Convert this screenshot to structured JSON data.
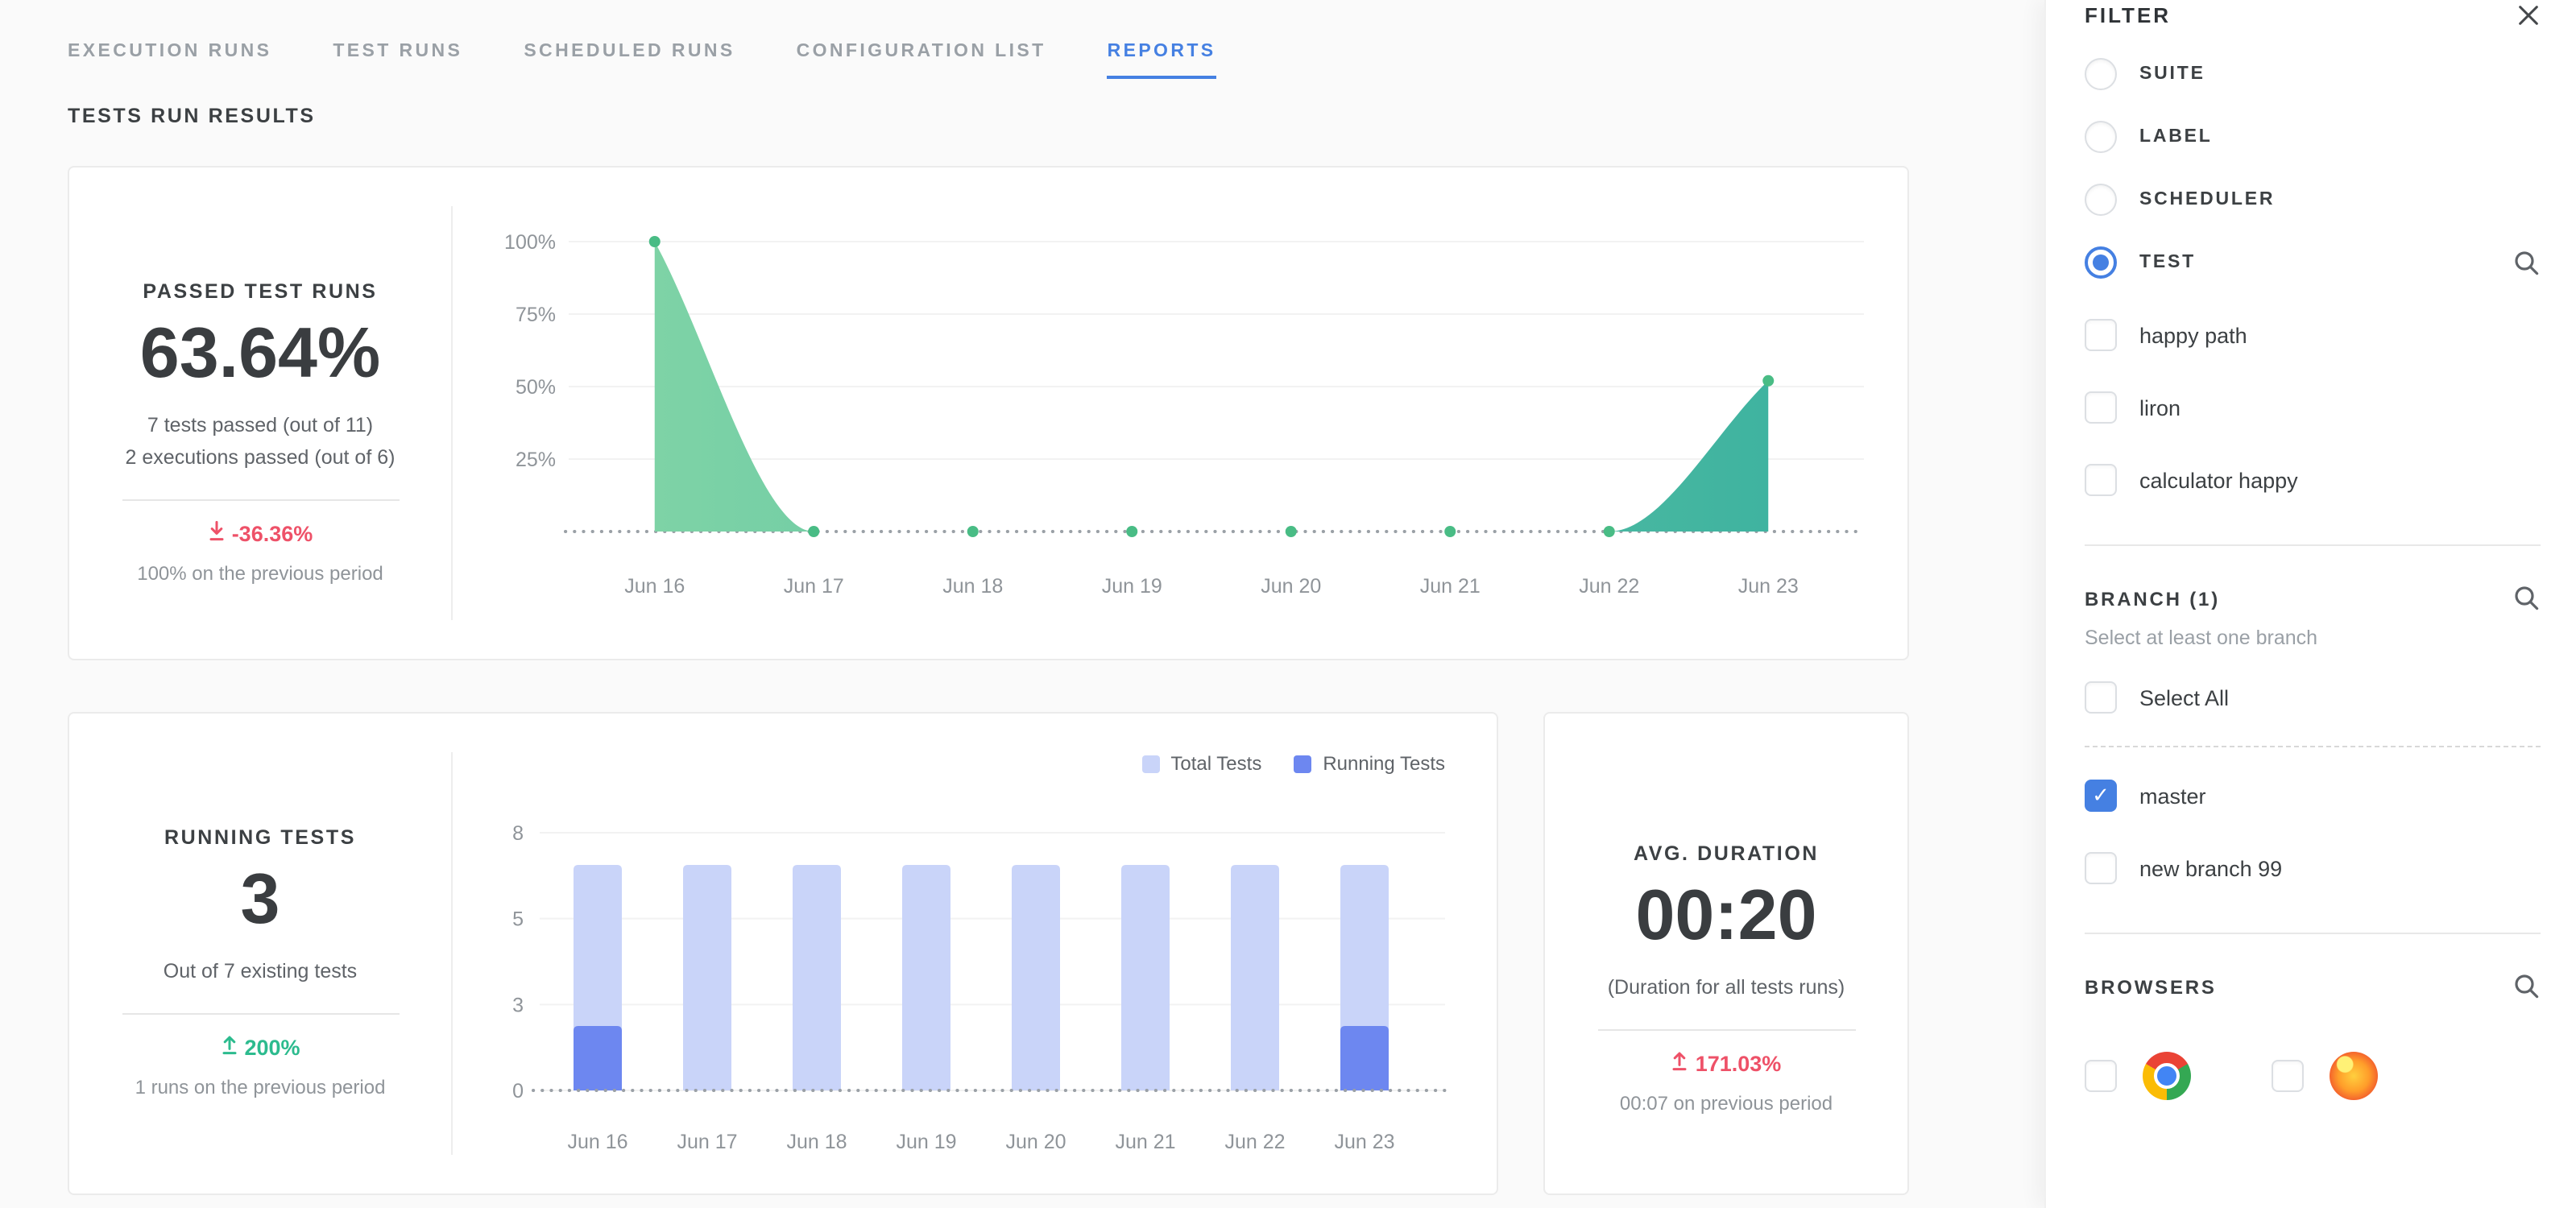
{
  "colors": {
    "accent": "#4580e2",
    "negative": "#ee5168",
    "positive": "#2cbb8e",
    "area_start": "#7ed3a6",
    "area_end": "#3fb3a0",
    "dot": "#49bc85"
  },
  "tabs": [
    {
      "label": "EXECUTION RUNS",
      "active": false
    },
    {
      "label": "TEST RUNS",
      "active": false
    },
    {
      "label": "SCHEDULED RUNS",
      "active": false
    },
    {
      "label": "CONFIGURATION LIST",
      "active": false
    },
    {
      "label": "REPORTS",
      "active": true
    }
  ],
  "section_title": "TESTS RUN RESULTS",
  "cards": {
    "passed": {
      "title": "PASSED TEST RUNS",
      "value": "63.64%",
      "line1": "7 tests passed (out of 11)",
      "line2": "2 executions passed (out of 6)",
      "delta": "-36.36%",
      "prev": "100% on the previous period"
    },
    "running": {
      "title": "RUNNING TESTS",
      "value": "3",
      "line1": "Out of 7 existing tests",
      "delta": "200%",
      "prev": "1 runs on the previous period"
    },
    "duration": {
      "title": "AVG. DURATION",
      "value": "00:20",
      "line1": "(Duration for all tests runs)",
      "delta": "171.03%",
      "prev": "00:07 on previous period"
    }
  },
  "chart_data": [
    {
      "type": "area",
      "title": "Passed test runs over time",
      "x": [
        "Jun 16",
        "Jun 17",
        "Jun 18",
        "Jun 19",
        "Jun 20",
        "Jun 21",
        "Jun 22",
        "Jun 23"
      ],
      "values": [
        100,
        0,
        0,
        0,
        0,
        0,
        0,
        52
      ],
      "yticks": [
        25,
        50,
        75,
        100
      ],
      "ytick_suffix": "%",
      "ylim": [
        0,
        100
      ],
      "grid": true,
      "baseline": "dotted"
    },
    {
      "type": "bar",
      "categories": [
        "Jun 16",
        "Jun 17",
        "Jun 18",
        "Jun 19",
        "Jun 20",
        "Jun 21",
        "Jun 22",
        "Jun 23"
      ],
      "series": [
        {
          "name": "Total Tests",
          "color": "#c9d4f9",
          "values": [
            7,
            7,
            7,
            7,
            7,
            7,
            7,
            7
          ]
        },
        {
          "name": "Running Tests",
          "color": "#6d87f0",
          "values": [
            2,
            0,
            0,
            0,
            0,
            0,
            0,
            2
          ]
        }
      ],
      "yticks": [
        0,
        3,
        5,
        8
      ],
      "ylim": [
        0,
        8
      ],
      "grid": true,
      "legend_position": "top-right",
      "baseline": "dotted"
    }
  ],
  "filter": {
    "title": "FILTER",
    "radios": [
      {
        "label": "SUITE",
        "selected": false
      },
      {
        "label": "LABEL",
        "selected": false
      },
      {
        "label": "SCHEDULER",
        "selected": false
      },
      {
        "label": "TEST",
        "selected": true
      }
    ],
    "test_options": [
      {
        "label": "happy path",
        "checked": false
      },
      {
        "label": "liron",
        "checked": false
      },
      {
        "label": "calculator happy",
        "checked": false
      }
    ],
    "branch": {
      "title": "BRANCH (1)",
      "subtitle": "Select at least one branch",
      "select_all_label": "Select All",
      "options": [
        {
          "label": "master",
          "checked": true
        },
        {
          "label": "new branch 99",
          "checked": false
        }
      ]
    },
    "browsers": {
      "title": "BROWSERS",
      "options": [
        {
          "name": "chrome",
          "checked": false
        },
        {
          "name": "firefox",
          "checked": false
        }
      ]
    }
  }
}
